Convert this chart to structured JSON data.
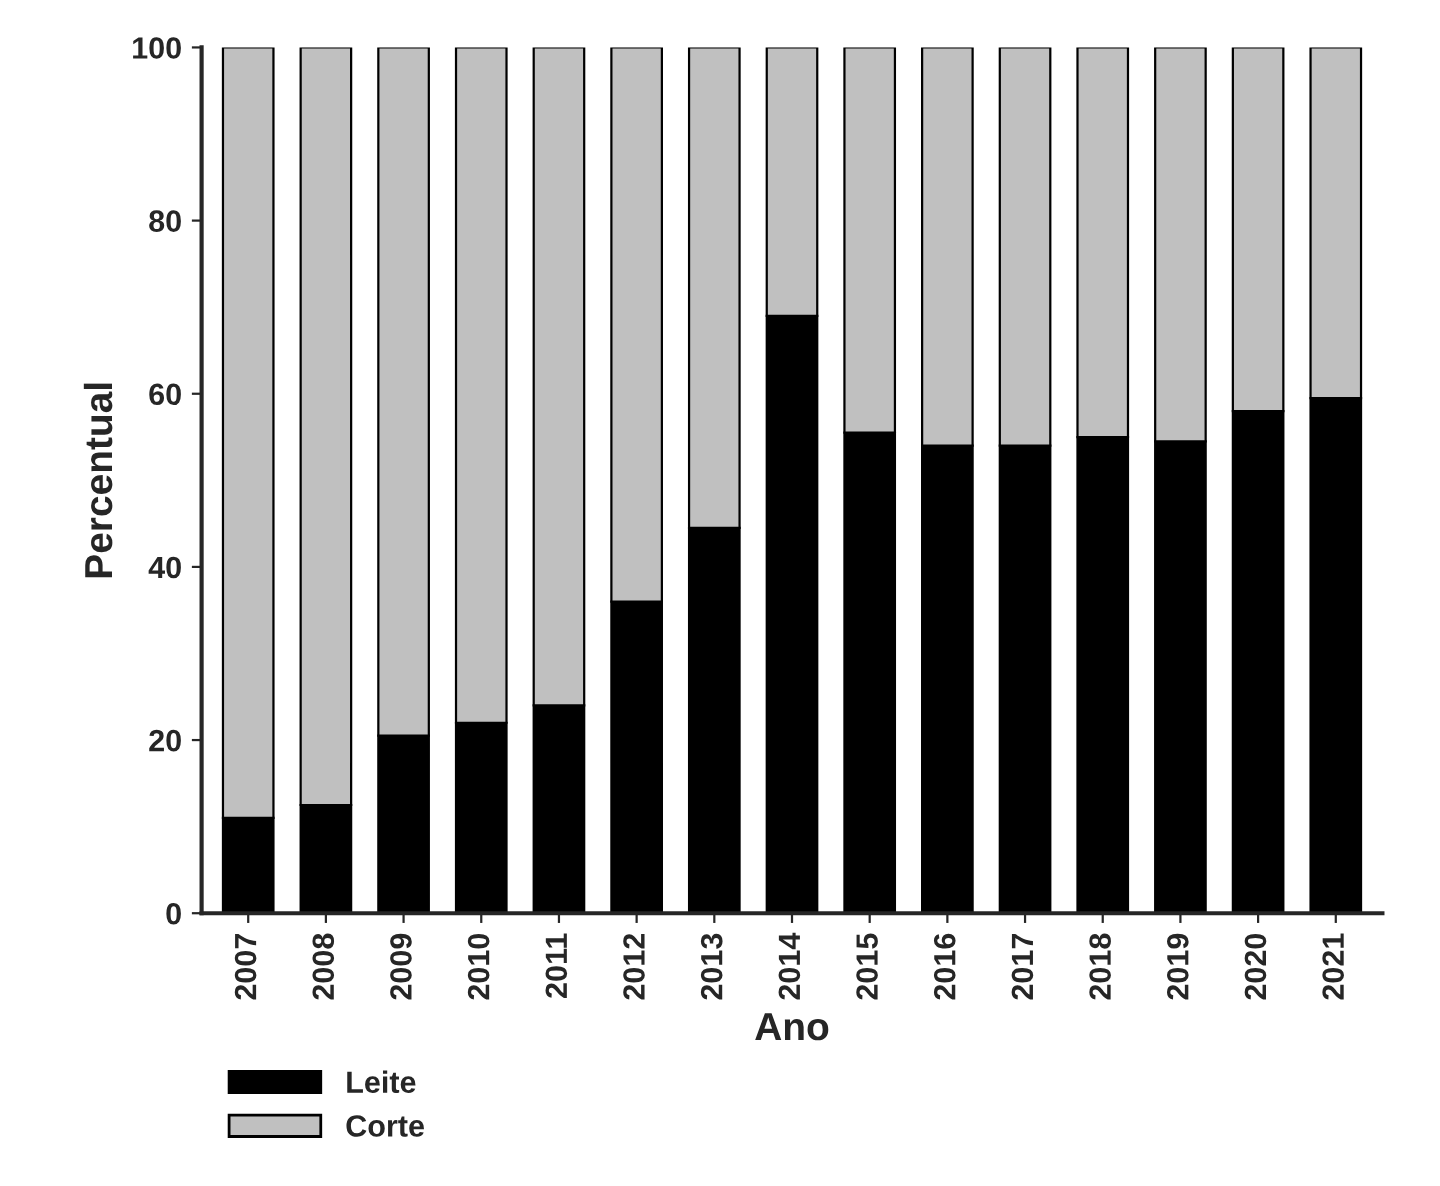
{
  "chart_data": {
    "type": "bar",
    "stacked": true,
    "xlabel": "Ano",
    "ylabel": "Percentual",
    "categories": [
      "2007",
      "2008",
      "2009",
      "2010",
      "2011",
      "2012",
      "2013",
      "2014",
      "2015",
      "2016",
      "2017",
      "2018",
      "2019",
      "2020",
      "2021"
    ],
    "series": [
      {
        "name": "Leite",
        "color": "#000000",
        "values": [
          11,
          12.5,
          20.5,
          22,
          24,
          36,
          44.5,
          69,
          55.5,
          54,
          54,
          55,
          54.5,
          58,
          59.5
        ]
      },
      {
        "name": "Corte",
        "color": "#c0c0c0",
        "values": [
          89,
          87.5,
          79.5,
          78,
          76,
          64,
          55.5,
          31,
          44.5,
          46,
          46,
          45,
          45.5,
          42,
          40.5
        ]
      }
    ],
    "ylim": [
      0,
      100
    ],
    "yticks": [
      0,
      20,
      40,
      60,
      80,
      100
    ],
    "grid": false,
    "legend": "bottom left"
  }
}
